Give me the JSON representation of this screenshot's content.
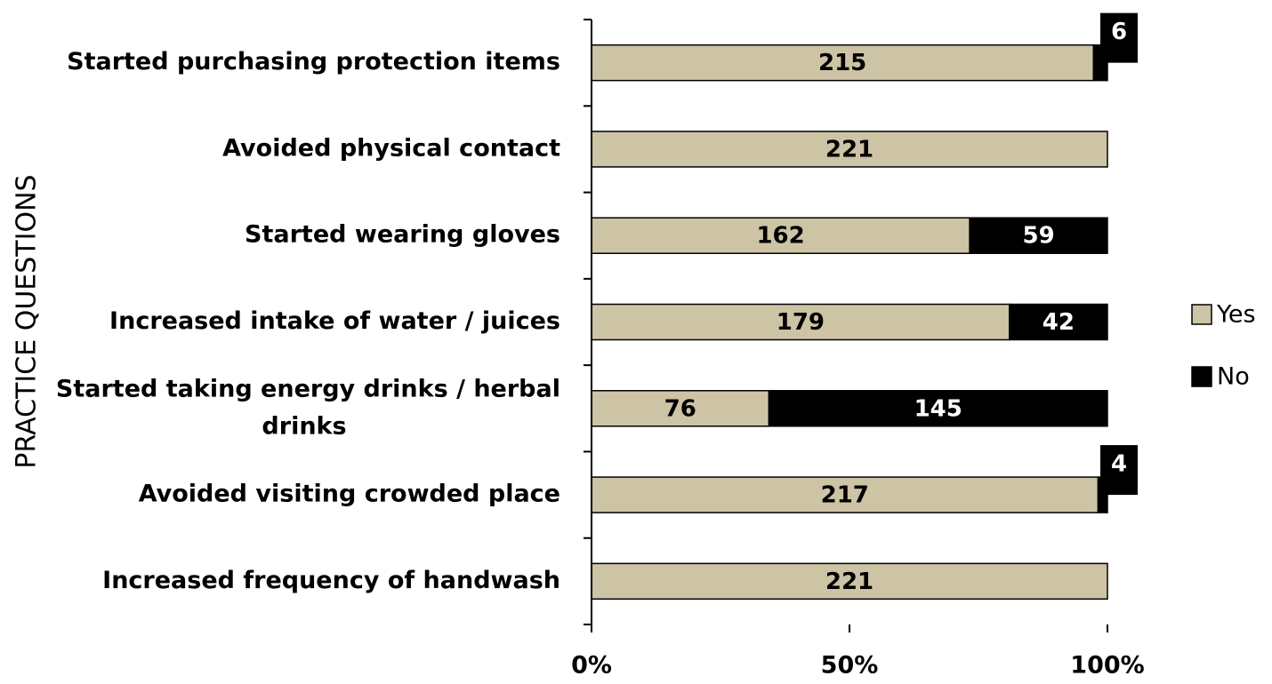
{
  "chart_data": {
    "type": "bar",
    "orientation": "horizontal",
    "stacked": "percent",
    "title": "",
    "ylabel": "PRACTICE QUESTIONS",
    "xlabel": "",
    "xlim": [
      0,
      100
    ],
    "x_ticks": [
      "0%",
      "50%",
      "100%"
    ],
    "categories": [
      "Started purchasing protection items",
      "Avoided physical contact",
      "Started wearing gloves",
      "Increased intake of water / juices",
      "Started taking energy drinks / herbal drinks",
      "Avoided visiting crowded place",
      "Increased frequency of handwash"
    ],
    "series": [
      {
        "name": "Yes",
        "color": "#cdc3a5",
        "values": [
          215,
          221,
          162,
          179,
          76,
          217,
          221
        ]
      },
      {
        "name": "No",
        "color": "#000000",
        "values": [
          6,
          0,
          59,
          42,
          145,
          4,
          0
        ]
      }
    ],
    "legend_position": "right",
    "grid": false
  }
}
